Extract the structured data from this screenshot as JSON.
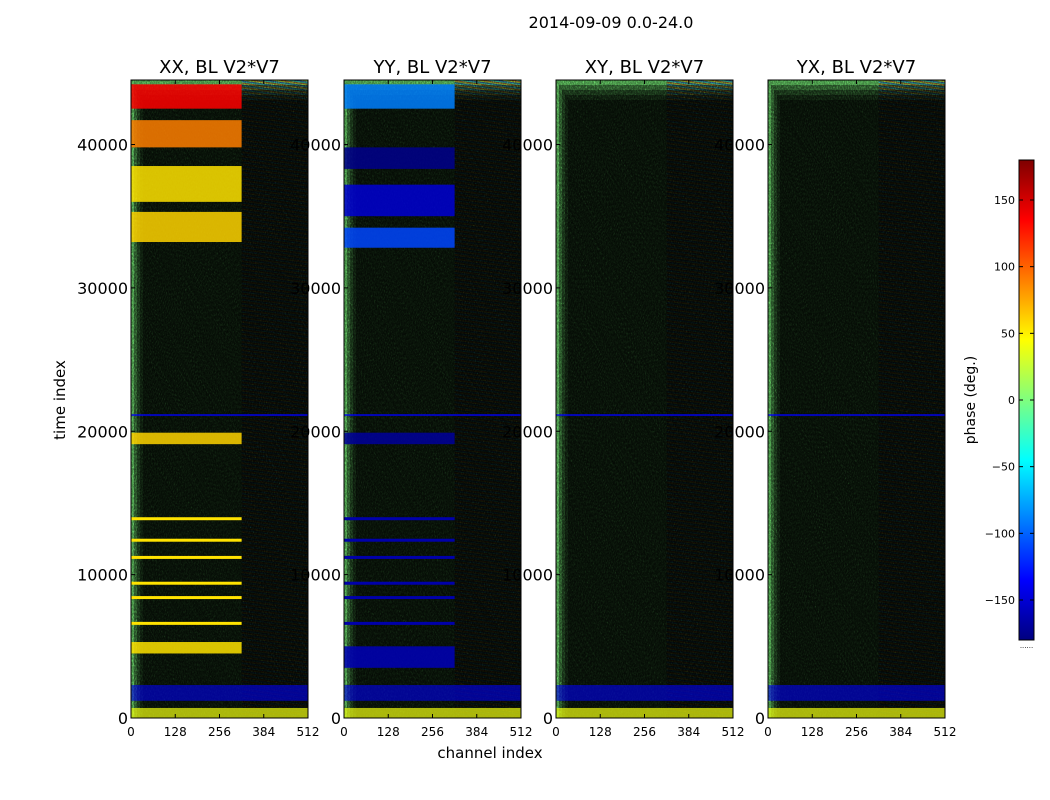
{
  "chart_data": {
    "type": "heatmap",
    "suptitle": "2014-09-09 0.0-24.0",
    "xlabel": "channel index",
    "ylabel": "time index",
    "x_range": [
      0,
      512
    ],
    "y_range": [
      0,
      44500
    ],
    "x_ticks": [
      0,
      128,
      256,
      384,
      512
    ],
    "y_ticks": [
      0,
      10000,
      20000,
      30000,
      40000
    ],
    "colormap": "jet",
    "colormap_stops": [
      "#00007f",
      "#0000ff",
      "#007fff",
      "#00ffff",
      "#7fff7f",
      "#ffff00",
      "#ff7f00",
      "#ff0000",
      "#7f0000"
    ],
    "colorbar": {
      "label": "phase (deg.)",
      "range": [
        -180,
        180
      ],
      "ticks": [
        -150,
        -100,
        -50,
        0,
        50,
        100,
        150
      ],
      "tick_labels": [
        "−150",
        "−100",
        "−50",
        "0",
        "50",
        "100",
        "150"
      ],
      "offset_label": "......"
    },
    "panels": [
      {
        "title": "XX, BL V2*V7",
        "bands": [
          {
            "y": [
              42500,
              44200
            ],
            "phase": 135
          },
          {
            "y": [
              39800,
              41700
            ],
            "phase": 90
          },
          {
            "y": [
              36000,
              38500
            ],
            "phase": 55
          },
          {
            "y": [
              33200,
              35300
            ],
            "phase": 60
          },
          {
            "y": [
              19100,
              19900
            ],
            "phase": 60
          },
          {
            "y": [
              4500,
              5300
            ],
            "phase": 55
          }
        ],
        "stripes_at": [
          13900,
          12400,
          11200,
          9400,
          8400,
          6600
        ],
        "stripe_phase": 55
      },
      {
        "title": "YY, BL V2*V7",
        "bands": [
          {
            "y": [
              42500,
              44200
            ],
            "phase": -90
          },
          {
            "y": [
              38300,
              39800
            ],
            "phase": -175
          },
          {
            "y": [
              35000,
              37200
            ],
            "phase": -150
          },
          {
            "y": [
              32800,
              34200
            ],
            "phase": -110
          },
          {
            "y": [
              19100,
              19900
            ],
            "phase": -170
          },
          {
            "y": [
              3500,
              5000
            ],
            "phase": -160
          }
        ],
        "stripes_at": [
          13900,
          12400,
          11200,
          9400,
          8400,
          6600
        ],
        "stripe_phase": -165
      },
      {
        "title": "XY, BL V2*V7",
        "bands": [],
        "stripes_at": [],
        "stripe_phase": 0
      },
      {
        "title": "YX, BL V2*V7",
        "bands": [],
        "stripes_at": [],
        "stripe_phase": 0
      }
    ]
  }
}
